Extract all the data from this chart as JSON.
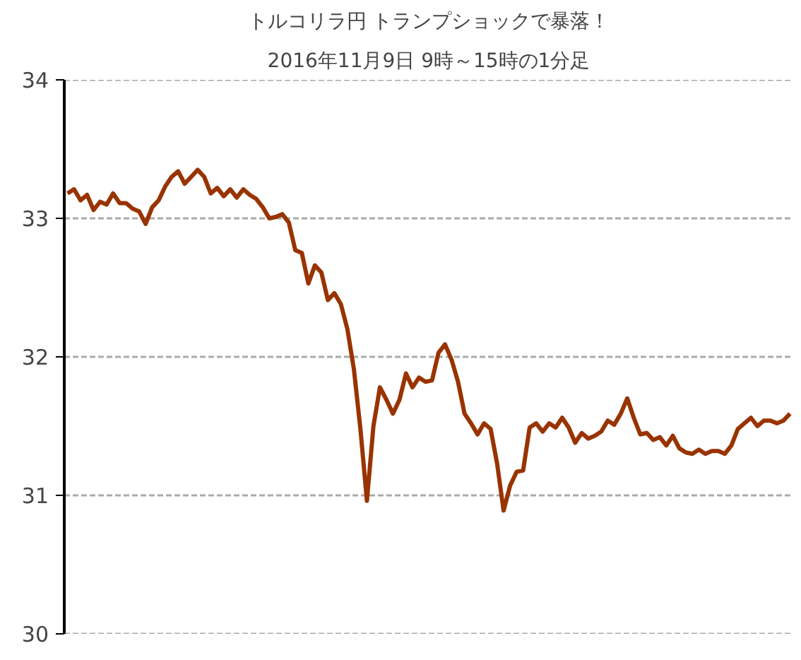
{
  "chart_data": {
    "type": "line",
    "title": "トルコリラ円 トランプショックで暴落！",
    "subtitle": "2016年11月9日 9時～15時の1分足",
    "categories": [
      null,
      null,
      null,
      null,
      null,
      null,
      null,
      null,
      null,
      null,
      null,
      null,
      null,
      null,
      null,
      null,
      null,
      null,
      null,
      null,
      null,
      null,
      null,
      null,
      null,
      null,
      null,
      null,
      null,
      null,
      null,
      null,
      null,
      null,
      null,
      null,
      null,
      null,
      null,
      null,
      null,
      null,
      null,
      null,
      null,
      null,
      null,
      null,
      null,
      null,
      null,
      null,
      null,
      null,
      null,
      null,
      null,
      null,
      null,
      null,
      null,
      null,
      null,
      null,
      null,
      null,
      null,
      null,
      null,
      null,
      null,
      null,
      null,
      null,
      null,
      null,
      null,
      null,
      null,
      null,
      null,
      null,
      null,
      null,
      null,
      null,
      null,
      null,
      null,
      null,
      null,
      null,
      null,
      null,
      null,
      null,
      null,
      null,
      null,
      null,
      null,
      null,
      null,
      null,
      null,
      null,
      null,
      null,
      null,
      null,
      null,
      null
    ],
    "series": [
      {
        "color": "#993300",
        "values": [
          33.18,
          33.21,
          33.13,
          33.17,
          33.06,
          33.12,
          33.1,
          33.18,
          33.11,
          33.11,
          33.07,
          33.05,
          32.96,
          33.08,
          33.13,
          33.23,
          33.3,
          33.34,
          33.25,
          33.3,
          33.35,
          33.3,
          33.18,
          33.22,
          33.16,
          33.21,
          33.15,
          33.21,
          33.17,
          33.14,
          33.08,
          33.0,
          33.01,
          33.03,
          32.97,
          32.77,
          32.75,
          32.53,
          32.66,
          32.61,
          32.41,
          32.46,
          32.38,
          32.2,
          31.91,
          31.48,
          30.96,
          31.5,
          31.78,
          31.69,
          31.59,
          31.69,
          31.88,
          31.78,
          31.85,
          31.82,
          31.83,
          32.03,
          32.09,
          31.98,
          31.82,
          31.59,
          31.52,
          31.44,
          31.52,
          31.48,
          31.23,
          30.89,
          31.07,
          31.17,
          31.18,
          31.49,
          31.52,
          31.46,
          31.52,
          31.49,
          31.56,
          31.49,
          31.38,
          31.45,
          31.41,
          31.43,
          31.46,
          31.54,
          31.51,
          31.59,
          31.7,
          31.56,
          31.44,
          31.45,
          31.4,
          31.42,
          31.36,
          31.43,
          31.34,
          31.31,
          31.3,
          31.33,
          31.3,
          31.32,
          31.32,
          31.3,
          31.36,
          31.48,
          31.52,
          31.56,
          31.5,
          31.54,
          31.54,
          31.52,
          31.54,
          31.59
        ]
      }
    ],
    "ylim": [
      30,
      34
    ],
    "yticks": [
      30,
      31,
      32,
      33,
      34
    ],
    "grid": "y",
    "line_style": "solid",
    "tick_labels": "y"
  }
}
